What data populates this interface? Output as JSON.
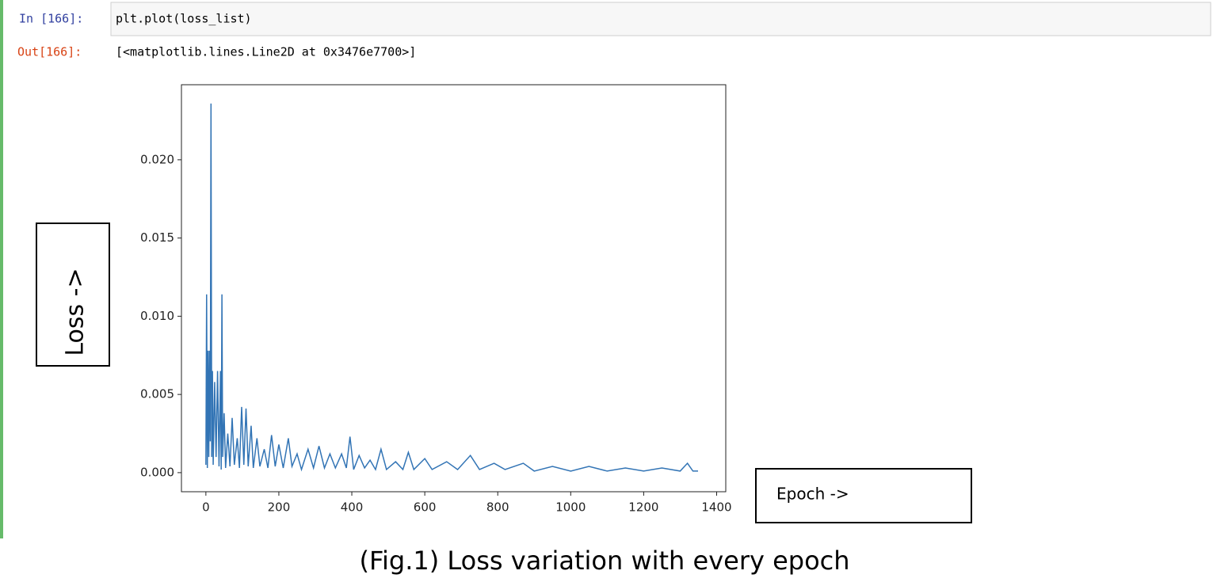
{
  "cell": {
    "in_prompt": "In [166]:",
    "code": "plt.plot(loss_list)",
    "out_prompt": "Out[166]:",
    "output": "[<matplotlib.lines.Line2D at 0x3476e7700>]"
  },
  "chart_data": {
    "type": "line",
    "ylabel": "Loss ->",
    "xlabel": "Epoch ->",
    "x": [
      0,
      2,
      4,
      6,
      8,
      10,
      12,
      14,
      16,
      18,
      20,
      24,
      28,
      32,
      36,
      40,
      42,
      44,
      46,
      50,
      54,
      60,
      66,
      72,
      78,
      86,
      92,
      98,
      104,
      110,
      116,
      124,
      130,
      140,
      148,
      160,
      170,
      180,
      190,
      200,
      212,
      226,
      236,
      250,
      262,
      280,
      295,
      310,
      325,
      340,
      355,
      372,
      385,
      395,
      405,
      420,
      435,
      450,
      465,
      480,
      495,
      520,
      540,
      555,
      570,
      600,
      620,
      660,
      690,
      725,
      750,
      790,
      820,
      870,
      900,
      950,
      1000,
      1050,
      1100,
      1150,
      1200,
      1250,
      1300,
      1320,
      1335,
      1349
    ],
    "series": [
      {
        "color": "#3274b5",
        "values": [
          0.0005,
          0.0114,
          0.0003,
          0.0078,
          0.001,
          0.0078,
          0.002,
          0.0236,
          0.001,
          0.0065,
          0.0005,
          0.0058,
          0.001,
          0.0065,
          0.0004,
          0.0065,
          0.0002,
          0.0114,
          0.001,
          0.0038,
          0.0003,
          0.0025,
          0.0004,
          0.0035,
          0.0005,
          0.0022,
          0.0003,
          0.0042,
          0.0005,
          0.0041,
          0.0004,
          0.003,
          0.0003,
          0.0022,
          0.0004,
          0.0015,
          0.0003,
          0.0024,
          0.0004,
          0.0018,
          0.0003,
          0.0022,
          0.0004,
          0.0012,
          0.0002,
          0.0015,
          0.0003,
          0.0017,
          0.0003,
          0.0012,
          0.0003,
          0.0012,
          0.0003,
          0.0023,
          0.0002,
          0.0011,
          0.0003,
          0.0008,
          0.0002,
          0.0015,
          0.0002,
          0.0007,
          0.0002,
          0.0013,
          0.0002,
          0.0009,
          0.0002,
          0.0007,
          0.0002,
          0.0011,
          0.0002,
          0.0006,
          0.0002,
          0.0006,
          0.0001,
          0.0004,
          0.0001,
          0.0004,
          0.0001,
          0.0003,
          0.0001,
          0.0003,
          0.0001,
          0.0006,
          0.0001,
          0.0001
        ]
      }
    ],
    "xlim": [
      -67,
      1425
    ],
    "xticks": [
      0,
      200,
      400,
      600,
      800,
      1000,
      1200,
      1400
    ],
    "ylim": [
      -0.00122,
      0.0248
    ],
    "yticks": [
      {
        "value": 0,
        "label": "0.000"
      },
      {
        "value": 0.005,
        "label": "0.005"
      },
      {
        "value": 0.01,
        "label": "0.010"
      },
      {
        "value": 0.015,
        "label": "0.015"
      },
      {
        "value": 0.02,
        "label": "0.020"
      }
    ]
  },
  "caption": "(Fig.1) Loss variation with every epoch"
}
